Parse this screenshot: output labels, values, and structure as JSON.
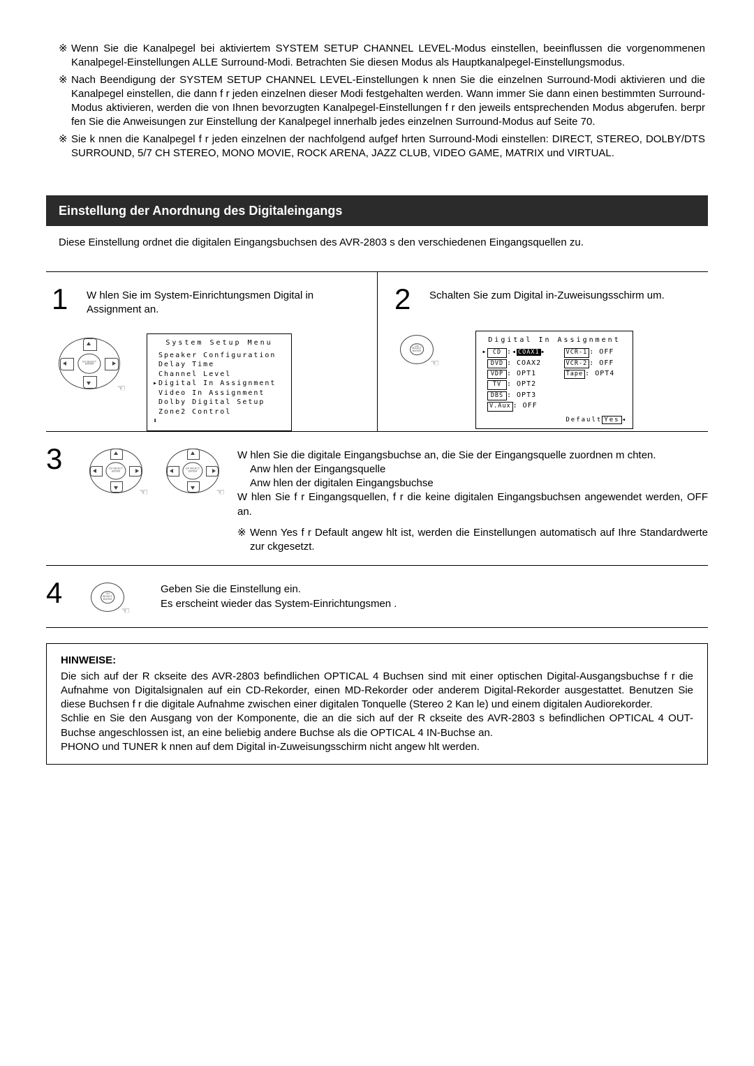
{
  "top_notes": [
    "Wenn Sie die Kanalpegel bei aktiviertem SYSTEM SETUP CHANNEL LEVEL-Modus einstellen, beeinflussen die vorgenommenen Kanalpegel-Einstellungen ALLE Surround-Modi. Betrachten Sie diesen Modus als Hauptkanalpegel-Einstellungsmodus.",
    "Nach Beendigung der SYSTEM SETUP CHANNEL LEVEL-Einstellungen k nnen Sie die einzelnen Surround-Modi aktivieren und die Kanalpegel einstellen, die dann f r jeden einzelnen dieser Modi festgehalten werden. Wann immer Sie dann einen bestimmten Surround-Modus aktivieren, werden die von Ihnen bevorzugten Kanalpegel-Einstellungen f r den jeweils entsprechenden Modus abgerufen.  berpr fen Sie die Anweisungen zur Einstellung der Kanalpegel innerhalb jedes einzelnen Surround-Modus auf Seite 70.",
    "Sie k nnen die Kanalpegel f r jeden einzelnen der nachfolgend aufgef hrten Surround-Modi einstellen: DIRECT, STEREO, DOLBY/DTS SURROUND, 5/7 CH STEREO, MONO MOVIE, ROCK ARENA, JAZZ CLUB, VIDEO GAME, MATRIX und VIRTUAL."
  ],
  "note_marker": "※",
  "section_title": "Einstellung der Anordnung des Digitaleingangs",
  "intro": "Diese Einstellung ordnet die digitalen Eingangsbuchsen des AVR-2803 s den verschiedenen Eingangsquellen zu.",
  "step1": {
    "num": "1",
    "text": "W hlen Sie im System-Einrichtungsmen  Digital in Assignment  an.",
    "menu_title": "System Setup Menu",
    "menu_items": [
      "Speaker Configuration",
      "Delay Time",
      "Channel Level",
      "Digital In Assignment",
      "Video In Assignment",
      "Dolby Digital Setup",
      "Zone2 Control"
    ],
    "menu_pointer_index": 3
  },
  "dpad_label_line1": "CH SELECT",
  "dpad_label_line2": "ENTER",
  "step2": {
    "num": "2",
    "text": "Schalten Sie zum Digital in-Zuweisungsschirm um.",
    "panel_title": "Digital In Assignment",
    "left_col": [
      {
        "lab": "CD",
        "val": "COAX1",
        "sel": true
      },
      {
        "lab": "DVD",
        "val": "COAX2"
      },
      {
        "lab": "VDP",
        "val": "OPT1"
      },
      {
        "lab": "TV",
        "val": "OPT2"
      },
      {
        "lab": "DBS",
        "val": "OPT3"
      },
      {
        "lab": "V.Aux",
        "val": "OFF"
      }
    ],
    "right_col": [
      {
        "lab": "VCR-1",
        "val": "OFF"
      },
      {
        "lab": "VCR-2",
        "val": "OFF"
      },
      {
        "lab": "Tape",
        "val": "OPT4"
      }
    ],
    "default_label": "Default",
    "default_value": "Yes"
  },
  "step3": {
    "num": "3",
    "line1": "W hlen Sie die digitale Eingangsbuchse an, die Sie der Eingangsquelle zuordnen m chten.",
    "bullet1": "Anw hlen der Eingangsquelle",
    "bullet2": "Anw hlen der digitalen Eingangsbuchse",
    "line2": "W hlen Sie f r Eingangsquellen, f r die keine digitalen Eingangsbuchsen angewendet werden,  OFF  an.",
    "foot": "Wenn  Yes  f r  Default  angew hlt ist, werden die Einstellungen automatisch auf Ihre Standardwerte zur ckgesetzt."
  },
  "step4": {
    "num": "4",
    "line1": "Geben Sie die Einstellung ein.",
    "line2": "Es erscheint wieder das System-Einrichtungsmen ."
  },
  "hinweise": {
    "title": "HINWEISE:",
    "p1": "Die sich auf der R ckseite des AVR-2803 befindlichen OPTICAL 4 Buchsen sind mit einer optischen Digital-Ausgangsbuchse f r die Aufnahme von Digitalsignalen auf ein CD-Rekorder, einen MD-Rekorder oder anderem Digital-Rekorder ausgestattet. Benutzen Sie diese Buchsen f r die digitale Aufnahme zwischen einer digitalen Tonquelle (Stereo  2 Kan le) und einem digitalen Audiorekorder.",
    "p2": "Schlie en Sie den Ausgang von der Komponente, die an die sich auf der R ckseite des AVR-2803 s befindlichen OPTICAL 4 OUT-Buchse angeschlossen ist, an eine beliebig andere Buchse als die OPTICAL 4 IN-Buchse an.",
    "p3": " PHONO  und  TUNER  k nnen auf dem Digital in-Zuweisungsschirm nicht angew hlt werden."
  }
}
